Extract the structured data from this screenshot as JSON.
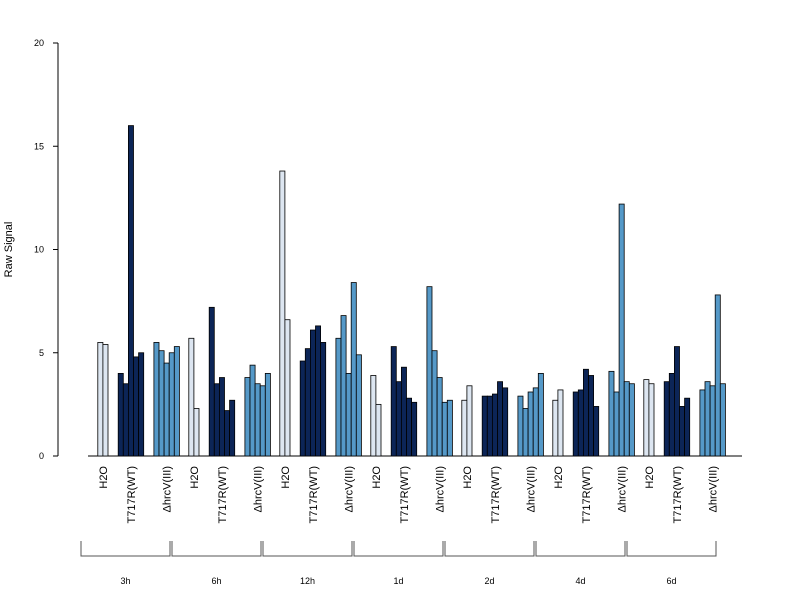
{
  "colors": {
    "H2O": "#dde6f1",
    "T717": "#0c2557",
    "hrcV": "#5599c8"
  },
  "chart_data": {
    "type": "bar",
    "ylabel": "Raw Signal",
    "ylim": [
      0,
      20
    ],
    "yticks": [
      "0",
      "5",
      "10",
      "15",
      "20"
    ],
    "treatments": [
      {
        "key": "H2O",
        "label": "H2O"
      },
      {
        "key": "T717",
        "label": "T717R(WT)"
      },
      {
        "key": "hrcV",
        "label": "ΔhrcV(III)"
      }
    ],
    "timepoints": [
      {
        "label": "3h",
        "values": {
          "H2O": [
            5.5,
            5.4
          ],
          "T717": [
            4.0,
            3.5,
            16.0,
            4.8,
            5.0
          ],
          "hrcV": [
            5.5,
            5.1,
            4.5,
            5.0,
            5.3
          ]
        }
      },
      {
        "label": "6h",
        "values": {
          "H2O": [
            5.7,
            2.3
          ],
          "T717": [
            7.2,
            3.5,
            3.8,
            2.2,
            2.7
          ],
          "hrcV": [
            3.8,
            4.4,
            3.5,
            3.4,
            4.0
          ]
        }
      },
      {
        "label": "12h",
        "values": {
          "H2O": [
            13.8,
            6.6
          ],
          "T717": [
            4.6,
            5.2,
            6.1,
            6.3,
            5.5
          ],
          "hrcV": [
            5.7,
            6.8,
            4.0,
            8.4,
            4.9
          ]
        }
      },
      {
        "label": "1d",
        "values": {
          "H2O": [
            3.9,
            2.5
          ],
          "T717": [
            5.3,
            3.6,
            4.3,
            2.8,
            2.6
          ],
          "hrcV": [
            8.2,
            5.1,
            3.8,
            2.6,
            2.7
          ]
        }
      },
      {
        "label": "2d",
        "values": {
          "H2O": [
            2.7,
            3.4
          ],
          "T717": [
            2.9,
            2.9,
            3.0,
            3.6,
            3.3
          ],
          "hrcV": [
            2.9,
            2.3,
            3.1,
            3.3,
            4.0
          ]
        }
      },
      {
        "label": "4d",
        "values": {
          "H2O": [
            2.7,
            3.2
          ],
          "T717": [
            3.1,
            3.2,
            4.2,
            3.9,
            2.4
          ],
          "hrcV": [
            4.1,
            3.1,
            12.2,
            3.6,
            3.5
          ]
        }
      },
      {
        "label": "6d",
        "values": {
          "H2O": [
            3.7,
            3.5
          ],
          "T717": [
            3.6,
            4.0,
            5.3,
            2.4,
            2.8
          ],
          "hrcV": [
            3.2,
            3.6,
            3.4,
            7.8,
            3.5
          ]
        }
      }
    ]
  }
}
